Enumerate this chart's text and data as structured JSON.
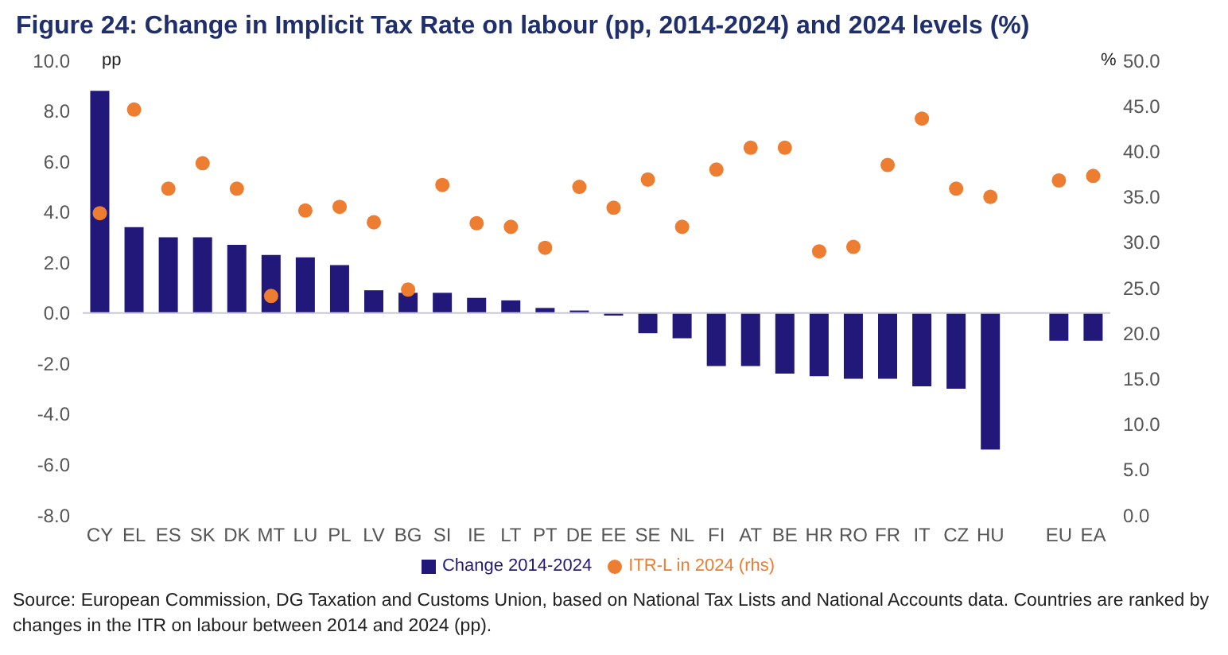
{
  "chart_data": {
    "type": "bar",
    "title": "Figure 24: Change in Implicit Tax Rate on labour (pp, 2014-2024) and 2024 levels (%)",
    "ylabel": "pp",
    "y2label": "%",
    "categories": [
      "CY",
      "EL",
      "ES",
      "SK",
      "DK",
      "MT",
      "LU",
      "PL",
      "LV",
      "BG",
      "SI",
      "IE",
      "LT",
      "PT",
      "DE",
      "EE",
      "SE",
      "NL",
      "FI",
      "AT",
      "BE",
      "HR",
      "RO",
      "FR",
      "IT",
      "CZ",
      "HU",
      null,
      "EU",
      "EA"
    ],
    "series": [
      {
        "name": "Change 2014-2024",
        "color": "#22187a",
        "values": [
          8.8,
          3.4,
          3.0,
          3.0,
          2.7,
          2.3,
          2.2,
          1.9,
          0.9,
          0.8,
          0.8,
          0.6,
          0.5,
          0.2,
          0.1,
          -0.1,
          -0.8,
          -1.0,
          -2.1,
          -2.1,
          -2.4,
          -2.5,
          -2.6,
          -2.6,
          -2.9,
          -3.0,
          -5.4,
          null,
          -1.1,
          -1.1
        ]
      },
      {
        "name": "ITR-L in 2024 (rhs)",
        "type": "scatter",
        "axis": "y2",
        "color": "#ed7d31",
        "values": [
          33.2,
          44.6,
          35.9,
          38.7,
          35.9,
          24.1,
          33.5,
          33.9,
          32.2,
          24.8,
          36.3,
          32.1,
          31.7,
          29.4,
          36.1,
          33.8,
          36.9,
          31.7,
          38.0,
          40.4,
          40.4,
          29.0,
          29.5,
          38.5,
          43.6,
          35.9,
          35.0,
          null,
          36.8,
          37.3
        ]
      }
    ],
    "ylim": [
      -8,
      10
    ],
    "yticks": [
      {
        "value": -8,
        "label": "-8.0"
      },
      {
        "value": -6,
        "label": "-6.0"
      },
      {
        "value": -4,
        "label": "-4.0"
      },
      {
        "value": -2,
        "label": "-2.0"
      },
      {
        "value": 0,
        "label": "0.0"
      },
      {
        "value": 2,
        "label": "2.0"
      },
      {
        "value": 4,
        "label": "4.0"
      },
      {
        "value": 6,
        "label": "6.0"
      },
      {
        "value": 8,
        "label": "8.0"
      },
      {
        "value": 10,
        "label": "10.0"
      }
    ],
    "y2lim": [
      0,
      50
    ],
    "y2ticks": [
      {
        "value": 0,
        "label": "0.0"
      },
      {
        "value": 5,
        "label": "5.0"
      },
      {
        "value": 10,
        "label": "10.0"
      },
      {
        "value": 15,
        "label": "15.0"
      },
      {
        "value": 20,
        "label": "20.0"
      },
      {
        "value": 25,
        "label": "25.0"
      },
      {
        "value": 30,
        "label": "30.0"
      },
      {
        "value": 35,
        "label": "35.0"
      },
      {
        "value": 40,
        "label": "40.0"
      },
      {
        "value": 45,
        "label": "45.0"
      },
      {
        "value": 50,
        "label": "50.0"
      }
    ],
    "ref_lines": [
      {
        "axis": "y",
        "value": 0,
        "color": "#c8c8d8"
      }
    ],
    "marker": "circle",
    "legend": "bottom",
    "grid": false,
    "annotations": [
      "Source: European Commission, DG Taxation and Customs Union, based on National Tax Lists and National Accounts data. Countries are ranked by changes in the ITR on labour between 2014 and 2024 (pp)."
    ]
  }
}
